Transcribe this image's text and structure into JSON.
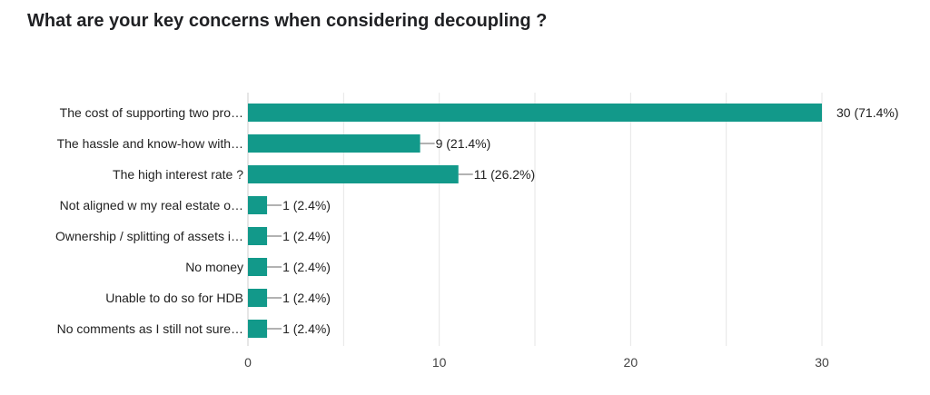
{
  "title": "What are your key concerns when considering decoupling ?",
  "colors": {
    "bar": "#12998A",
    "grid": "#e6e6e6",
    "axis": "#cccccc",
    "connector": "#666666"
  },
  "chart_data": {
    "type": "bar",
    "orientation": "horizontal",
    "title": "What are your key concerns when considering decoupling ?",
    "categories": [
      "The cost of supporting two pro…",
      "The hassle and know-how with…",
      "The high interest rate ?",
      "Not aligned w my real estate o…",
      "Ownership / splitting of assets i…",
      "No money",
      "Unable to do so for HDB",
      "No comments as I still not sure…"
    ],
    "values": [
      30,
      9,
      11,
      1,
      1,
      1,
      1,
      1
    ],
    "data_labels": [
      "30 (71.4%)",
      "9 (21.4%)",
      "11 (26.2%)",
      "1 (2.4%)",
      "1 (2.4%)",
      "1 (2.4%)",
      "1 (2.4%)",
      "1 (2.4%)"
    ],
    "xlim": [
      0,
      30
    ],
    "xticks": [
      "0",
      "10",
      "20",
      "30"
    ],
    "grid": true,
    "xlabel": "",
    "ylabel": ""
  }
}
